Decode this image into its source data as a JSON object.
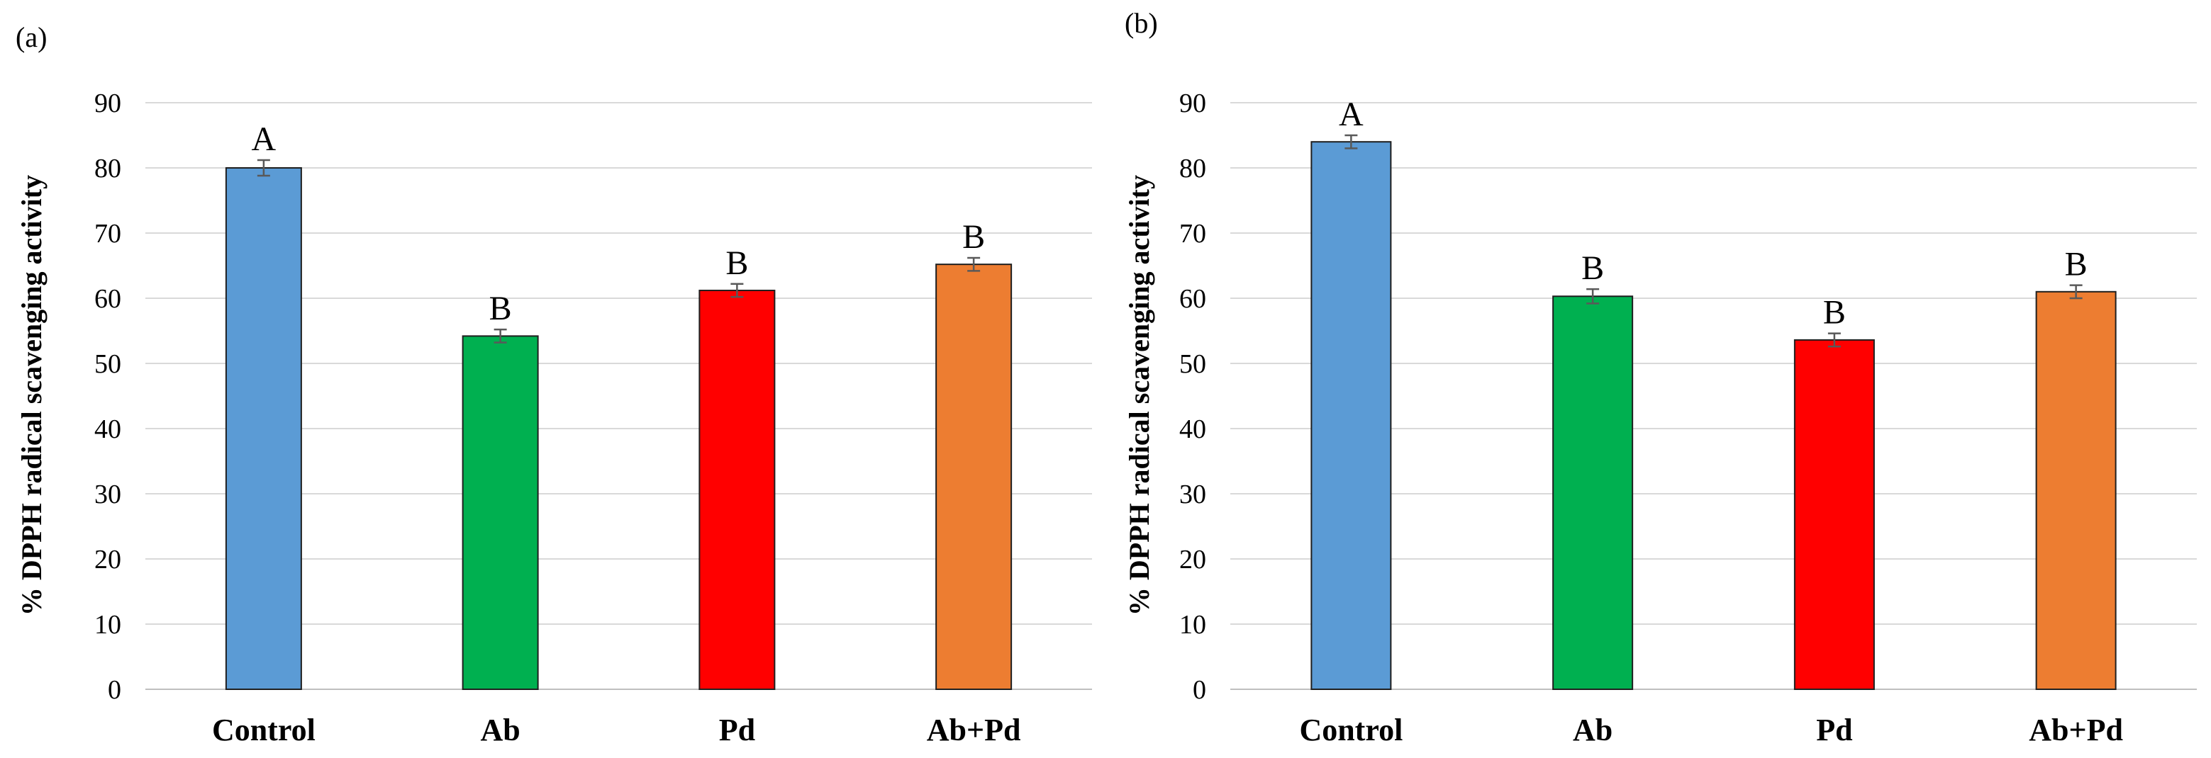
{
  "chart_data": [
    {
      "type": "bar",
      "panel_label": "(a)",
      "ylabel": "% DPPH radical scavenging activity",
      "xlabel": "",
      "ylim": [
        0,
        90
      ],
      "yticks": [
        0,
        10,
        20,
        30,
        40,
        50,
        60,
        70,
        80,
        90
      ],
      "grid": true,
      "categories": [
        "Control",
        "Ab",
        "Pd",
        "Ab+Pd"
      ],
      "values": [
        80,
        54.2,
        61.2,
        65.2
      ],
      "errors": [
        1.2,
        1.0,
        1.0,
        1.0
      ],
      "significance": [
        "A",
        "B",
        "B",
        "B"
      ],
      "colors": [
        "#5b9bd5",
        "#00b050",
        "#ff0000",
        "#ed7d31"
      ]
    },
    {
      "type": "bar",
      "panel_label": "(b)",
      "ylabel": "% DPPH radical scavenging activity",
      "xlabel": "",
      "ylim": [
        0,
        90
      ],
      "yticks": [
        0,
        10,
        20,
        30,
        40,
        50,
        60,
        70,
        80,
        90
      ],
      "grid": true,
      "categories": [
        "Control",
        "Ab",
        "Pd",
        "Ab+Pd"
      ],
      "values": [
        84,
        60.3,
        53.6,
        61
      ],
      "errors": [
        1.0,
        1.1,
        1.0,
        1.0
      ],
      "significance": [
        "A",
        "B",
        "B",
        "B"
      ],
      "colors": [
        "#5b9bd5",
        "#00b050",
        "#ff0000",
        "#ed7d31"
      ]
    }
  ]
}
